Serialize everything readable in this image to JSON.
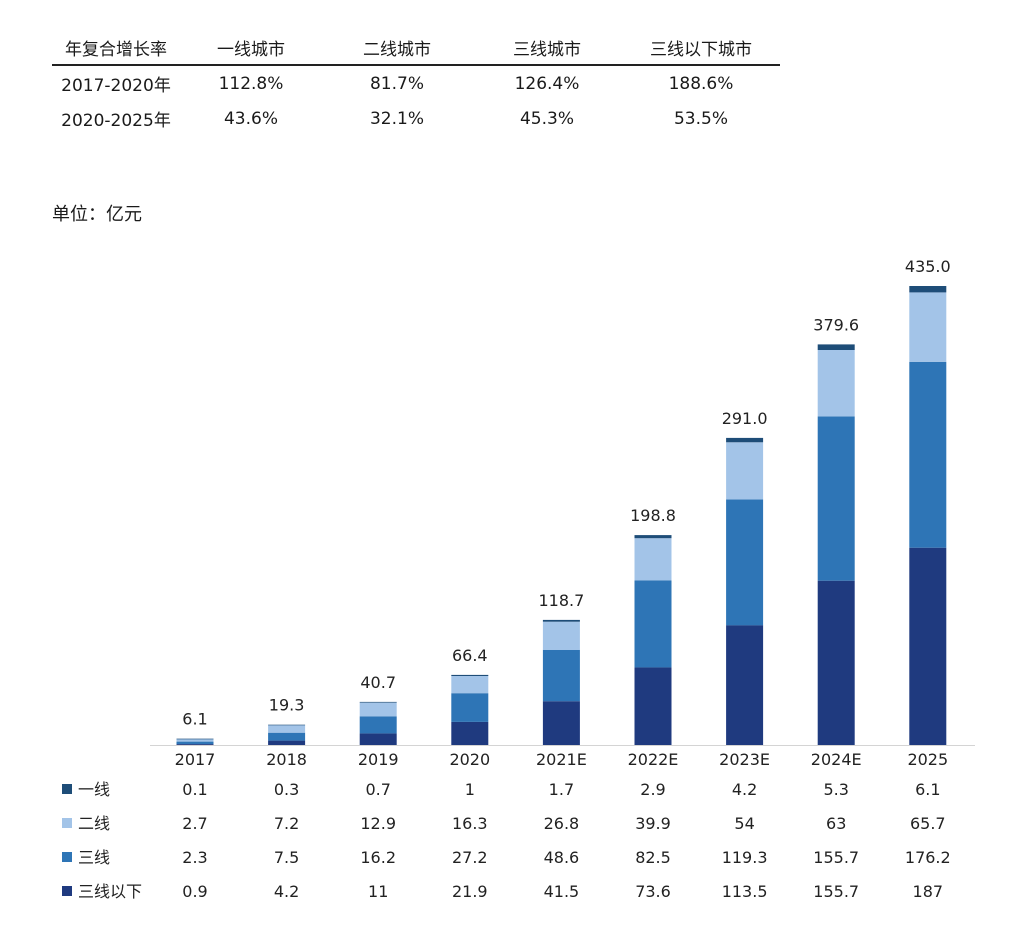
{
  "cagr_table": {
    "headers": [
      "年复合增长率",
      "一线城市",
      "二线城市",
      "三线城市",
      "三线以下城市"
    ],
    "rows": [
      [
        "2017-2020年",
        "112.8%",
        "81.7%",
        "126.4%",
        "188.6%"
      ],
      [
        "2020-2025年",
        "43.6%",
        "32.1%",
        "45.3%",
        "53.5%"
      ]
    ]
  },
  "unit_label": "单位：亿元",
  "chart_data": {
    "type": "bar",
    "stacked": true,
    "categories": [
      "2017",
      "2018",
      "2019",
      "2020",
      "2021E",
      "2022E",
      "2023E",
      "2024E",
      "2025"
    ],
    "totals": [
      "6.1",
      "19.3",
      "40.7",
      "66.4",
      "118.7",
      "198.8",
      "291.0",
      "379.6",
      "435.0"
    ],
    "series": [
      {
        "name": "三线以下",
        "color": "#1f3a7f",
        "values": [
          0.9,
          4.2,
          11,
          21.9,
          41.5,
          73.6,
          113.5,
          155.7,
          187
        ],
        "labels": [
          "0.9",
          "4.2",
          "11",
          "21.9",
          "41.5",
          "73.6",
          "113.5",
          "155.7",
          "187"
        ]
      },
      {
        "name": "三线",
        "color": "#2e75b6",
        "values": [
          2.3,
          7.5,
          16.2,
          27.2,
          48.6,
          82.5,
          119.3,
          155.7,
          176.2
        ],
        "labels": [
          "2.3",
          "7.5",
          "16.2",
          "27.2",
          "48.6",
          "82.5",
          "119.3",
          "155.7",
          "176.2"
        ]
      },
      {
        "name": "二线",
        "color": "#a3c4e8",
        "values": [
          2.7,
          7.2,
          12.9,
          16.3,
          26.8,
          39.9,
          54,
          63,
          65.7
        ],
        "labels": [
          "2.7",
          "7.2",
          "12.9",
          "16.3",
          "26.8",
          "39.9",
          "54",
          "63",
          "65.7"
        ]
      },
      {
        "name": "一线",
        "color": "#1e4d78",
        "values": [
          0.1,
          0.3,
          0.7,
          1,
          1.7,
          2.9,
          4.2,
          5.3,
          6.1
        ],
        "labels": [
          "0.1",
          "0.3",
          "0.7",
          "1",
          "1.7",
          "2.9",
          "4.2",
          "5.3",
          "6.1"
        ]
      }
    ],
    "legend_order": [
      "一线",
      "二线",
      "三线",
      "三线以下"
    ],
    "legend_placement": "bottom-left data table",
    "ylim": [
      0,
      435
    ],
    "grid": false,
    "title": "",
    "xlabel": "",
    "ylabel": ""
  }
}
